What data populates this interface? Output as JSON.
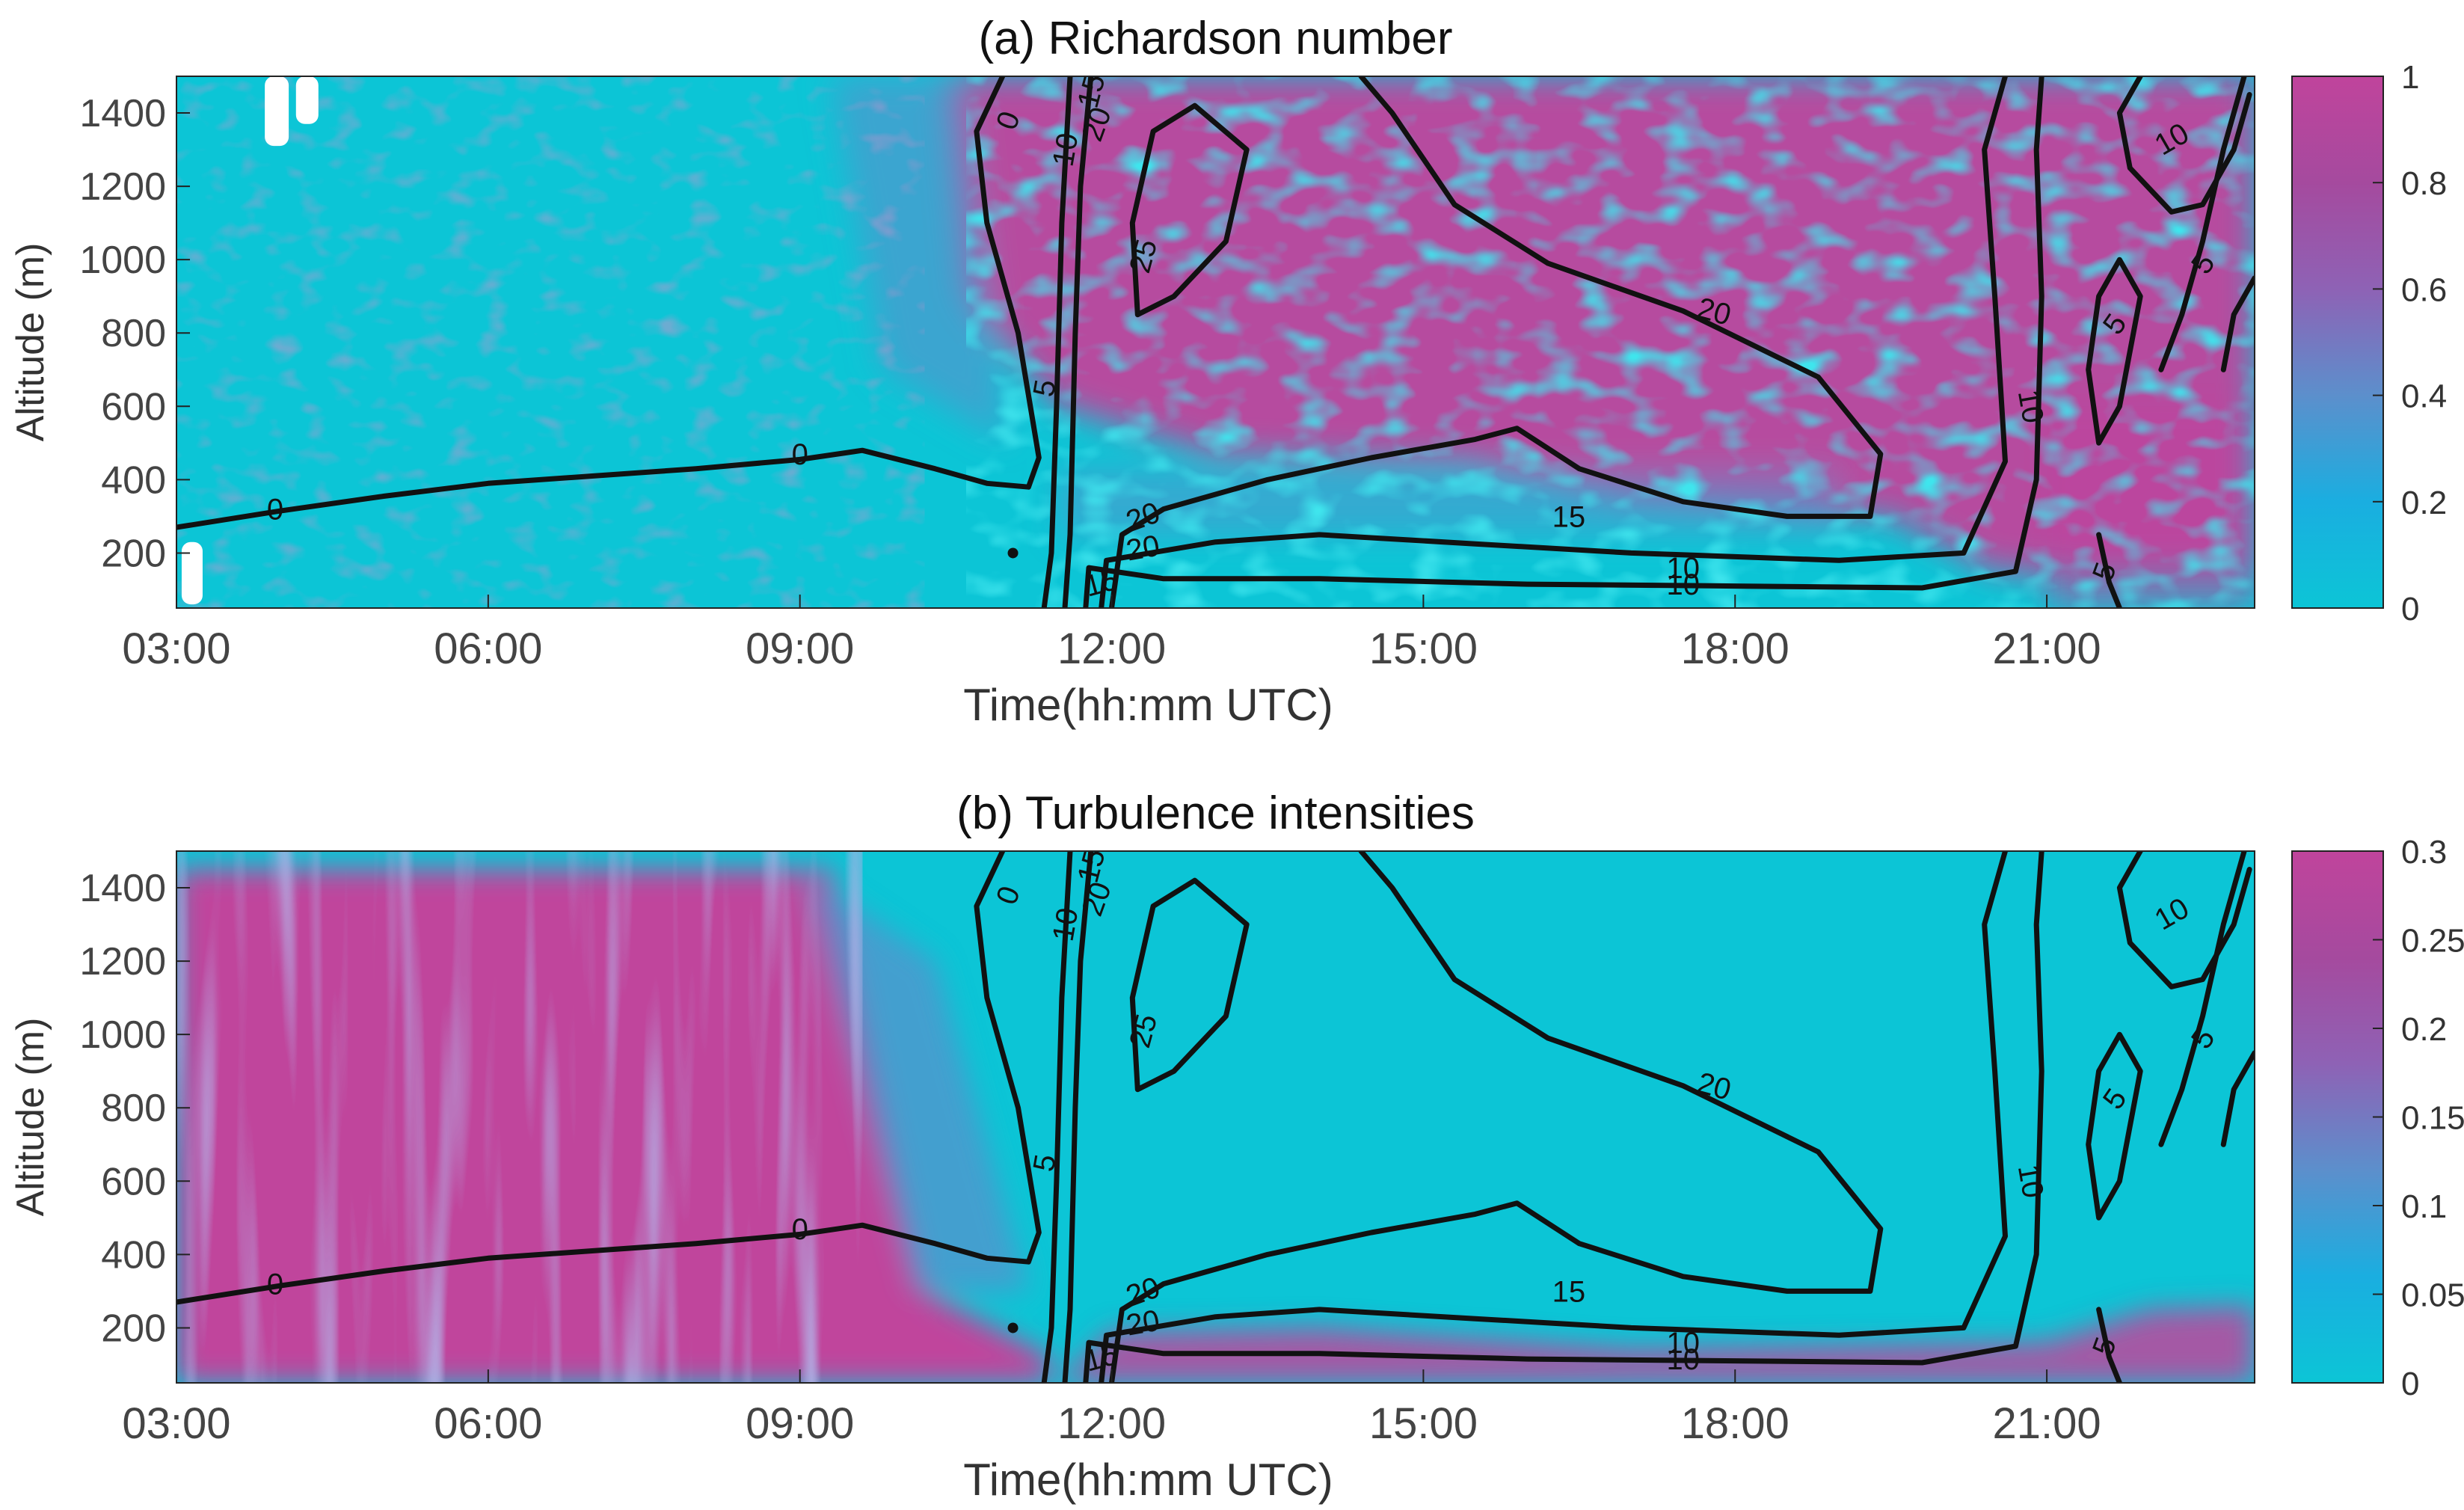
{
  "chart_data": [
    {
      "type": "heatmap",
      "title": "(a) Richardson number",
      "xlabel": "Time(hh:mm UTC)",
      "ylabel": "Altitude (m)",
      "x_ticks": [
        "03:00",
        "06:00",
        "09:00",
        "12:00",
        "15:00",
        "18:00",
        "21:00"
      ],
      "x_range": [
        "03:00",
        "23:00"
      ],
      "y_ticks": [
        200,
        400,
        600,
        800,
        1000,
        1200,
        1400
      ],
      "ylim": [
        50,
        1500
      ],
      "colorbar": {
        "range": [
          0,
          1
        ],
        "ticks": [
          "0",
          "0.2",
          "0.4",
          "0.6",
          "0.8",
          "1"
        ],
        "colors": [
          "#0cc5d6",
          "#1aaee0",
          "#5c8fcc",
          "#8e62b5",
          "#a54a9e",
          "#c0449c"
        ]
      },
      "field_summary": [
        {
          "period": "03:00-10:30",
          "altitude": "50-1500",
          "level": 0.1
        },
        {
          "period": "10:30-23:00",
          "altitude": "450-1500",
          "level": 1.0
        },
        {
          "period": "11:30-20:00",
          "altitude": "50-400",
          "level": 0.15
        }
      ],
      "contour_labels": [
        "0",
        "0",
        "0",
        "5",
        "10",
        "15",
        "20",
        "25",
        "20",
        "20",
        "15",
        "10",
        "10",
        "15",
        "20",
        "10",
        "5",
        "5",
        "5",
        "10"
      ]
    },
    {
      "type": "heatmap",
      "title": "(b) Turbulence intensities",
      "xlabel": "Time(hh:mm UTC)",
      "ylabel": "Altitude (m)",
      "x_ticks": [
        "03:00",
        "06:00",
        "09:00",
        "12:00",
        "15:00",
        "18:00",
        "21:00"
      ],
      "x_range": [
        "03:00",
        "23:00"
      ],
      "y_ticks": [
        200,
        400,
        600,
        800,
        1000,
        1200,
        1400
      ],
      "ylim": [
        50,
        1500
      ],
      "colorbar": {
        "range": [
          0,
          0.3
        ],
        "ticks": [
          "0",
          "0.05",
          "0.1",
          "0.15",
          "0.2",
          "0.25",
          "0.3"
        ],
        "colors": [
          "#0cc5d6",
          "#1aaee0",
          "#5c8fcc",
          "#8e62b5",
          "#a54a9e",
          "#c0449c"
        ]
      },
      "field_summary": [
        {
          "period": "03:00-09:30",
          "altitude": "50-1500",
          "level": 0.27
        },
        {
          "period": "11:30-23:00",
          "altitude": "400-1500",
          "level": 0.02
        },
        {
          "period": "11:30-21:00",
          "altitude": "50-200",
          "level": 0.25
        }
      ],
      "contour_labels": [
        "0",
        "0",
        "0",
        "5",
        "10",
        "15",
        "20",
        "25",
        "20",
        "20",
        "15",
        "10",
        "10",
        "15",
        "20",
        "10",
        "5",
        "5",
        "5",
        "10"
      ]
    }
  ]
}
